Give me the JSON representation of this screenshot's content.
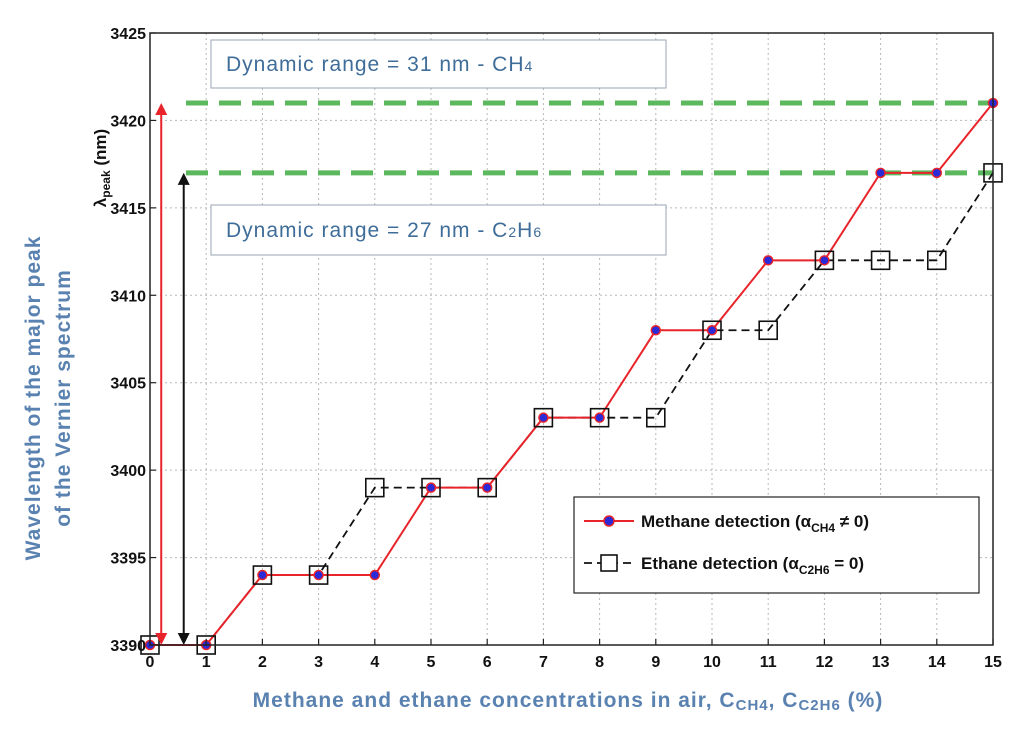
{
  "chart_data": {
    "type": "line",
    "x": [
      0,
      1,
      2,
      3,
      4,
      5,
      6,
      7,
      8,
      9,
      10,
      11,
      12,
      13,
      14,
      15
    ],
    "series": [
      {
        "name": "Methane detection (αCH4 ≠ 0)",
        "legend_main": "Methane detection (α",
        "legend_sub": "CH4",
        "legend_tail": " ≠ 0)",
        "values": [
          3390,
          3390,
          3394,
          3394,
          3394,
          3399,
          3399,
          3403,
          3403,
          3408,
          3408,
          3412,
          3412,
          3417,
          3417,
          3421
        ],
        "color": "#e8242a",
        "marker": "circle",
        "marker_color": "#2a2ad8"
      },
      {
        "name": "Ethane detection (αC2H6 = 0)",
        "legend_main": "Ethane detection (α",
        "legend_sub": "C2H6",
        "legend_tail": " = 0)",
        "values": [
          3390,
          3390,
          3394,
          3394,
          3399,
          3399,
          3399,
          3403,
          3403,
          3403,
          3408,
          3408,
          3412,
          3412,
          3412,
          3417
        ],
        "color": "#111111",
        "marker": "square",
        "dashed": true
      }
    ],
    "xlim": [
      0,
      15
    ],
    "ylim": [
      3390,
      3425
    ],
    "xticks": [
      0,
      1,
      2,
      3,
      4,
      5,
      6,
      7,
      8,
      9,
      10,
      11,
      12,
      13,
      14,
      15
    ],
    "yticks": [
      3390,
      3395,
      3400,
      3405,
      3410,
      3415,
      3420,
      3425
    ],
    "grid": true,
    "legend_position": "lower-right",
    "xlabel": {
      "main": "Methane and ethane concentrations in air, C",
      "sub1": "CH4",
      "mid": ", C",
      "sub2": "C2H6",
      "tail": " (%)"
    },
    "ylabel_outer": [
      "Wavelength of the major peak",
      "of the Vernier spectrum"
    ],
    "ylabel_inner": {
      "main": "λ",
      "sub": "peak",
      "tail": " (nm)"
    },
    "reference_lines": [
      {
        "y": 3421,
        "color": "#5cb85c"
      },
      {
        "y": 3417,
        "color": "#5cb85c"
      }
    ],
    "range_arrows": [
      {
        "x": 0.2,
        "y_from": 3390,
        "y_to": 3421,
        "color": "#e8242a"
      },
      {
        "x": 0.6,
        "y_from": 3390,
        "y_to": 3417,
        "color": "#111111"
      }
    ],
    "annotations": [
      {
        "main": "Dynamic range = 31 nm - CH",
        "sub": "4"
      },
      {
        "main": "Dynamic range = 27 nm - C",
        "sub": "2",
        "mid": "H",
        "sub2": "6"
      }
    ],
    "colors": {
      "axis_title": "#5a82b0",
      "annotation_text": "#3f6d99",
      "grid": "#b8b8b8"
    }
  }
}
